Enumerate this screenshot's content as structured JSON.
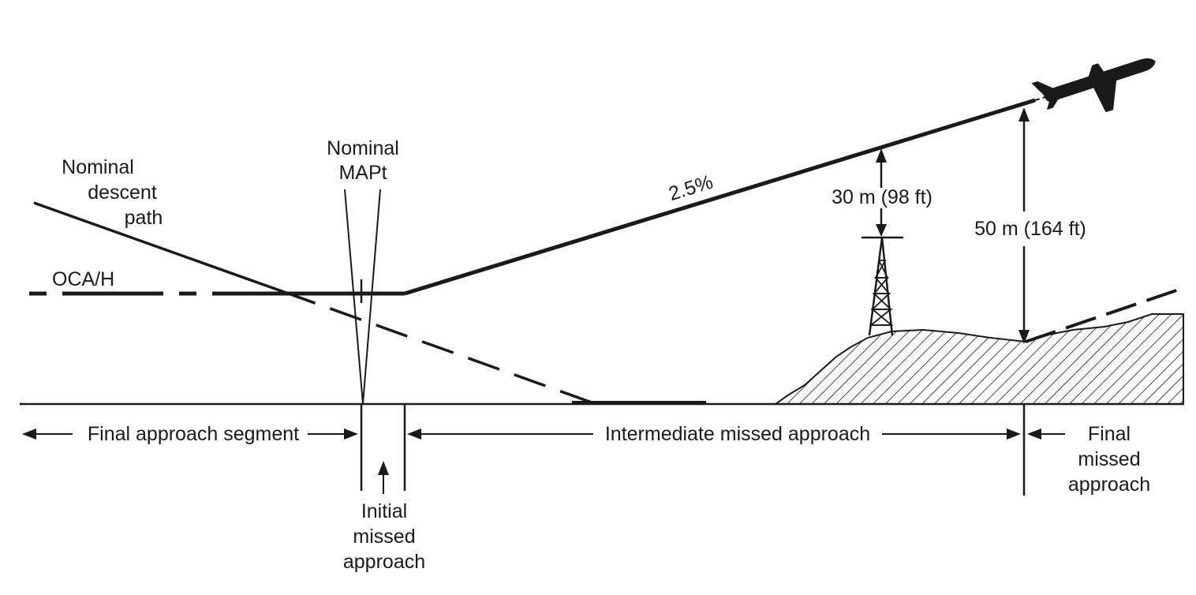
{
  "labels": {
    "descent_line1": "Nominal",
    "descent_line2": "descent",
    "descent_line3": "path",
    "mapt_line1": "Nominal",
    "mapt_line2": "MAPt",
    "oca": "OCA/H",
    "gradient": "2.5%",
    "clearance_30": "30 m (98 ft)",
    "clearance_50": "50 m (164 ft)"
  },
  "segments": {
    "final_approach": "Final approach segment",
    "intermediate": "Intermediate missed approach",
    "initial_line1": "Initial",
    "initial_line2": "missed",
    "initial_line3": "approach",
    "final_missed_line1": "Final",
    "final_missed_line2": "missed",
    "final_missed_line3": "approach"
  },
  "colors": {
    "ink": "#1a1a1a",
    "background": "#ffffff"
  },
  "icons": [
    "aircraft-icon",
    "tower-icon",
    "terrain-hatch"
  ]
}
